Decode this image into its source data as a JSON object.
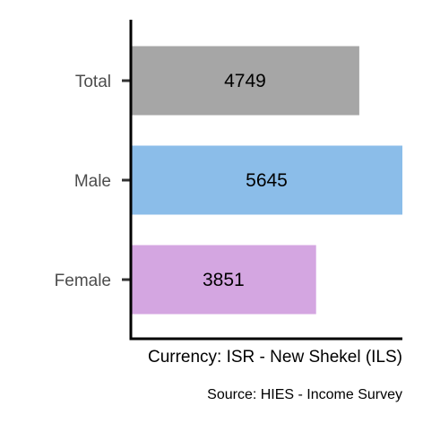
{
  "chart_data": {
    "type": "bar",
    "orientation": "horizontal",
    "categories": [
      "Total",
      "Male",
      "Female"
    ],
    "values": [
      4749,
      5645,
      3851
    ],
    "data_labels": [
      "4749",
      "5645",
      "3851"
    ],
    "xlabel": "Currency: ISR - New Shekel (ILS)",
    "caption": "Source:  HIES - Income Survey",
    "xlim": [
      0,
      5645
    ],
    "grid": false,
    "legend": "none",
    "colors": [
      "#a6a6a6",
      "#8bbde9",
      "#d4a6e1"
    ]
  }
}
